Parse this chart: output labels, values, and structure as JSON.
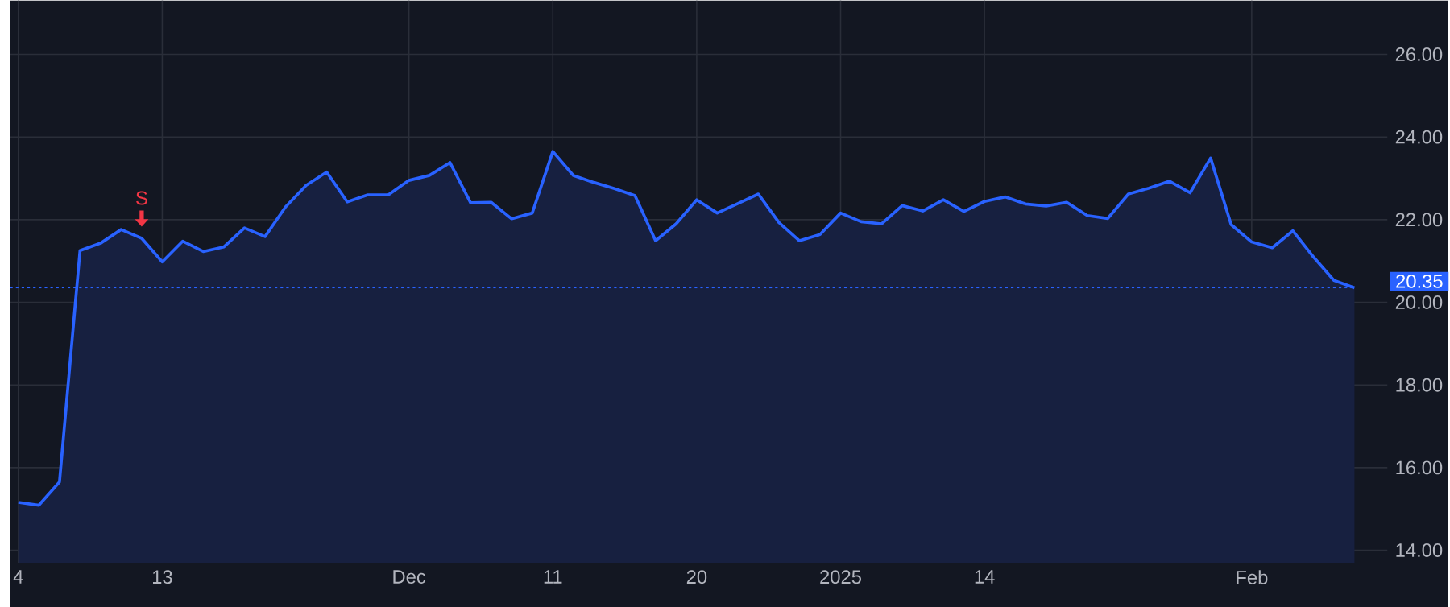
{
  "chart_data": {
    "type": "area",
    "categories": [
      "4",
      null,
      null,
      null,
      null,
      null,
      null,
      "13",
      null,
      null,
      null,
      null,
      null,
      null,
      null,
      null,
      null,
      null,
      null,
      "Dec",
      null,
      null,
      null,
      null,
      null,
      null,
      "11",
      null,
      null,
      null,
      null,
      null,
      null,
      "20",
      null,
      null,
      null,
      null,
      null,
      null,
      "2025",
      null,
      null,
      null,
      null,
      null,
      null,
      "14",
      null,
      null,
      null,
      null,
      null,
      null,
      null,
      null,
      null,
      null,
      null,
      null,
      "Feb",
      null,
      null,
      null,
      null,
      null
    ],
    "series": [
      {
        "color": "#2962ff",
        "values": [
          15.16,
          15.09,
          15.65,
          21.25,
          21.43,
          21.76,
          21.55,
          20.98,
          21.48,
          21.23,
          21.34,
          21.8,
          21.59,
          22.31,
          22.83,
          23.15,
          22.43,
          22.6,
          22.6,
          22.95,
          23.07,
          23.38,
          22.41,
          22.42,
          22.02,
          22.16,
          23.65,
          23.07,
          22.9,
          22.75,
          22.58,
          21.49,
          21.9,
          22.48,
          22.16,
          22.39,
          22.62,
          21.93,
          21.49,
          21.64,
          22.16,
          21.95,
          21.9,
          22.34,
          22.21,
          22.48,
          22.2,
          22.44,
          22.55,
          22.38,
          22.33,
          22.42,
          22.1,
          22.03,
          22.62,
          22.76,
          22.93,
          22.65,
          23.49,
          21.88,
          21.46,
          21.32,
          21.73,
          21.1,
          20.53,
          20.35
        ]
      }
    ],
    "ylim": [
      13.7,
      27.3
    ],
    "yticks": [
      {
        "value": 14,
        "label": "14.00"
      },
      {
        "value": 16,
        "label": "16.00"
      },
      {
        "value": 18,
        "label": "18.00"
      },
      {
        "value": 20,
        "label": "20.00"
      },
      {
        "value": 22,
        "label": "22.00"
      },
      {
        "value": 24,
        "label": "24.00"
      },
      {
        "value": 26,
        "label": "26.00"
      }
    ],
    "grid": true,
    "ref_lines": [
      {
        "axis": "y",
        "value": 20.35,
        "label": "20.35",
        "color": "#2962ff",
        "line_style": "dotted"
      }
    ],
    "annotations": [
      {
        "text": "S",
        "y": 21.55
      }
    ]
  }
}
